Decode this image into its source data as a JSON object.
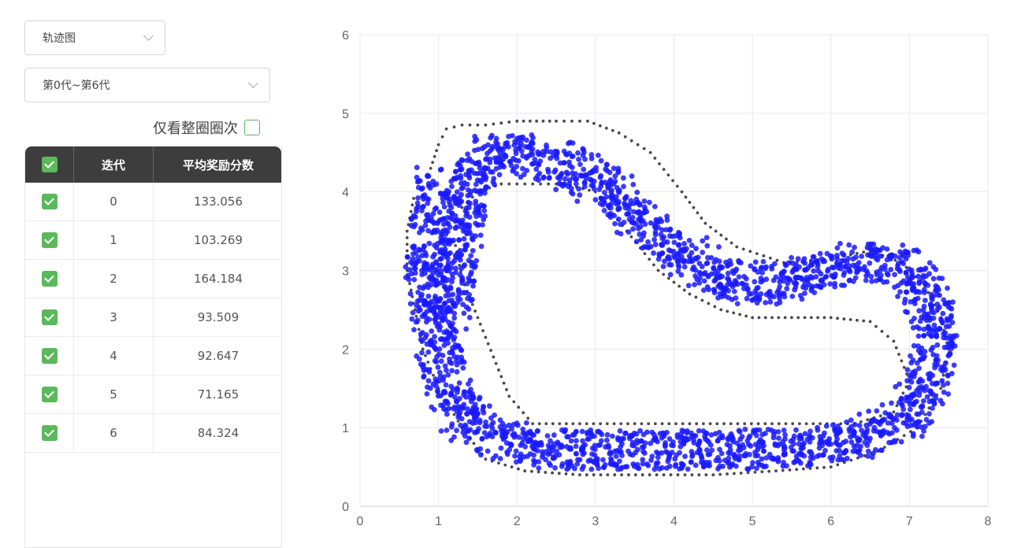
{
  "controls": {
    "chart_type": "轨迹图",
    "range": "第0代~第6代",
    "filter_label": "仅看整圈圈次"
  },
  "table": {
    "columns": [
      "迭代",
      "平均奖励分数"
    ],
    "rows": [
      {
        "iteration": "0",
        "score": "133.056"
      },
      {
        "iteration": "1",
        "score": "103.269"
      },
      {
        "iteration": "2",
        "score": "164.184"
      },
      {
        "iteration": "3",
        "score": "93.509"
      },
      {
        "iteration": "4",
        "score": "92.647"
      },
      {
        "iteration": "5",
        "score": "71.165"
      },
      {
        "iteration": "6",
        "score": "84.324"
      }
    ]
  },
  "colors": {
    "accent": "#5cb85c",
    "header": "#3d3d3d",
    "points": "#1a1aff",
    "track": "#4a4a4a"
  },
  "chart_data": {
    "type": "scatter",
    "title": "",
    "xlabel": "",
    "ylabel": "",
    "xlim": [
      0,
      8
    ],
    "ylim": [
      0,
      6
    ],
    "xticks": [
      "0",
      "1",
      "2",
      "3",
      "4",
      "5",
      "6",
      "7",
      "8"
    ],
    "yticks": [
      "0",
      "1",
      "2",
      "3",
      "4",
      "5",
      "6"
    ],
    "grid": true,
    "series": [
      {
        "role": "track-outer",
        "color": "#4a4a4a",
        "x": [
          0.9,
          1.0,
          1.1,
          1.3,
          1.6,
          2.0,
          2.5,
          2.9,
          3.3,
          3.7,
          4.1,
          4.4,
          4.8,
          5.4,
          6.0,
          6.5,
          6.9,
          7.2,
          7.4,
          7.5,
          7.4,
          7.1,
          6.6,
          6.0,
          5.3,
          4.5,
          3.6,
          2.8,
          2.1,
          1.6,
          1.3,
          1.0,
          0.8,
          0.7,
          0.6,
          0.6,
          0.7
        ],
        "y": [
          4.3,
          4.6,
          4.8,
          4.85,
          4.85,
          4.9,
          4.9,
          4.9,
          4.75,
          4.5,
          4.0,
          3.6,
          3.3,
          3.1,
          3.15,
          3.25,
          3.1,
          2.8,
          2.4,
          2.0,
          1.5,
          1.0,
          0.7,
          0.5,
          0.45,
          0.4,
          0.4,
          0.4,
          0.45,
          0.6,
          1.0,
          1.5,
          2.0,
          2.5,
          3.0,
          3.5,
          4.0
        ]
      },
      {
        "role": "track-inner",
        "color": "#4a4a4a",
        "x": [
          1.3,
          1.5,
          1.8,
          2.2,
          2.6,
          3.0,
          3.4,
          3.8,
          4.2,
          4.6,
          5.0,
          5.5,
          6.0,
          6.5,
          6.8,
          7.0,
          6.8,
          6.3,
          5.6,
          4.9,
          4.2,
          3.5,
          2.8,
          2.2,
          1.9,
          1.7,
          1.5,
          1.3,
          1.2
        ],
        "y": [
          3.8,
          4.0,
          4.1,
          4.1,
          4.1,
          4.0,
          3.5,
          3.0,
          2.7,
          2.5,
          2.4,
          2.4,
          2.4,
          2.35,
          2.1,
          1.6,
          1.2,
          1.05,
          1.05,
          1.05,
          1.05,
          1.05,
          1.05,
          1.05,
          1.4,
          1.9,
          2.4,
          2.9,
          3.4
        ]
      },
      {
        "role": "trajectory",
        "color": "#1a1aff",
        "x": [
          1.0,
          0.9,
          0.85,
          0.9,
          1.0,
          1.1,
          1.3,
          1.5,
          1.8,
          2.1,
          2.4,
          2.7,
          3.0,
          3.2,
          3.4,
          3.6,
          3.8,
          4.1,
          4.5,
          5.0,
          5.5,
          6.0,
          6.5,
          6.9,
          7.2,
          7.35,
          7.3,
          7.1,
          6.7,
          6.2,
          5.6,
          5.0,
          4.4,
          3.8,
          3.2,
          2.6,
          2.1,
          1.8,
          1.6,
          1.5,
          1.4,
          1.3,
          1.2,
          1.1
        ],
        "y": [
          4.1,
          3.6,
          3.1,
          2.6,
          2.1,
          1.6,
          1.2,
          1.0,
          0.85,
          0.75,
          0.72,
          0.72,
          0.72,
          0.72,
          0.72,
          0.72,
          0.72,
          0.72,
          0.72,
          0.72,
          0.75,
          0.8,
          0.9,
          1.1,
          1.5,
          2.0,
          2.5,
          2.9,
          3.1,
          3.1,
          2.9,
          2.8,
          3.0,
          3.4,
          4.0,
          4.35,
          4.45,
          4.5,
          4.45,
          4.3,
          4.0,
          3.6,
          3.0,
          2.4
        ]
      }
    ]
  }
}
